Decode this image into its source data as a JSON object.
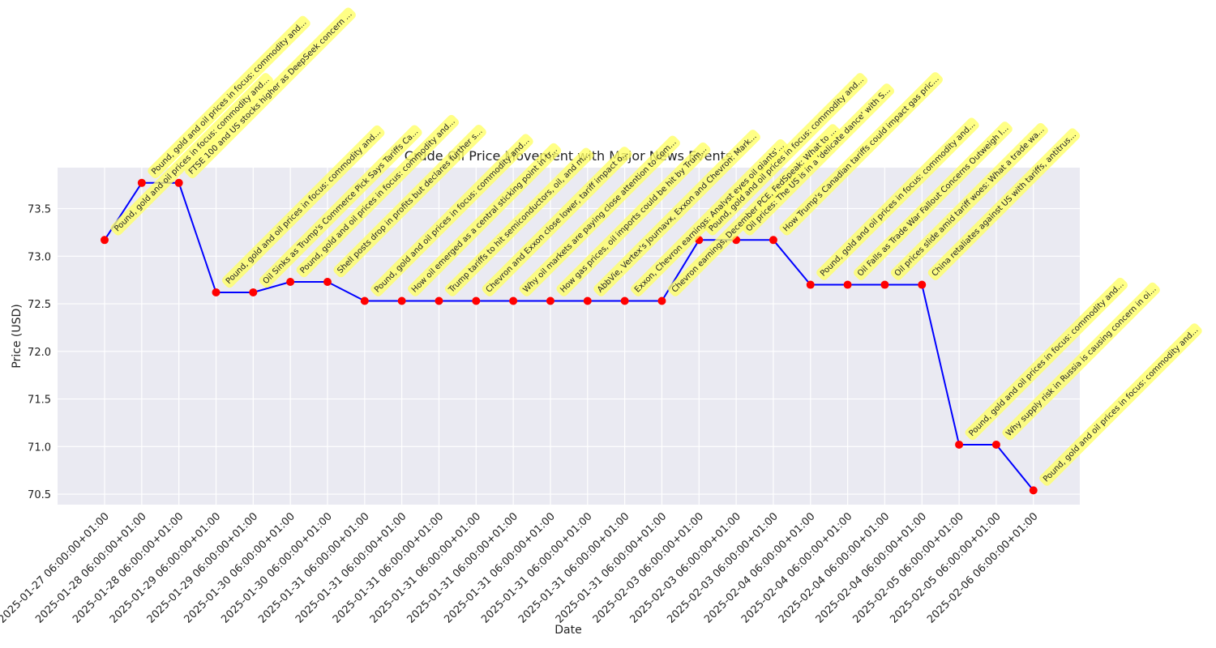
{
  "chart_data": {
    "type": "line",
    "title": "Crude Oil Price Movement with Major News Events",
    "x_label": "Date",
    "y_label": "Price (USD)",
    "categories": [
      "2025-01-27 06:00:00+01:00",
      "2025-01-28 06:00:00+01:00",
      "2025-01-28 06:00:00+01:00",
      "2025-01-29 06:00:00+01:00",
      "2025-01-29 06:00:00+01:00",
      "2025-01-30 06:00:00+01:00",
      "2025-01-30 06:00:00+01:00",
      "2025-01-31 06:00:00+01:00",
      "2025-01-31 06:00:00+01:00",
      "2025-01-31 06:00:00+01:00",
      "2025-01-31 06:00:00+01:00",
      "2025-01-31 06:00:00+01:00",
      "2025-01-31 06:00:00+01:00",
      "2025-01-31 06:00:00+01:00",
      "2025-01-31 06:00:00+01:00",
      "2025-01-31 06:00:00+01:00",
      "2025-02-03 06:00:00+01:00",
      "2025-02-03 06:00:00+01:00",
      "2025-02-03 06:00:00+01:00",
      "2025-02-04 06:00:00+01:00",
      "2025-02-04 06:00:00+01:00",
      "2025-02-04 06:00:00+01:00",
      "2025-02-04 06:00:00+01:00",
      "2025-02-05 06:00:00+01:00",
      "2025-02-05 06:00:00+01:00",
      "2025-02-06 06:00:00+01:00"
    ],
    "series": [
      {
        "name": "Price",
        "color": "#0000ff",
        "marker_color": "#ff0000",
        "values": [
          73.17,
          73.77,
          73.77,
          72.62,
          72.62,
          72.73,
          72.73,
          72.53,
          72.53,
          72.53,
          72.53,
          72.53,
          72.53,
          72.53,
          72.53,
          72.53,
          73.17,
          73.17,
          73.17,
          72.7,
          72.7,
          72.7,
          72.7,
          71.02,
          71.02,
          70.54
        ]
      }
    ],
    "annotations": [
      "Pound, gold and oil prices in focus: commodity and...",
      "Pound, gold and oil prices in focus: commodity and...",
      "FTSE 100 and US stocks higher as DeepSeek concern ...",
      "Pound, gold and oil prices in focus: commodity and...",
      "Oil Sinks as Trump's Commerce Pick Says Tariffs Ca...",
      "Pound, gold and oil prices in focus: commodity and...",
      "Shell posts drop in profits but declares further s...",
      "Pound, gold and oil prices in focus: commodity and...",
      "How oil emerged as a central sticking point in tr...",
      "Trump tariffs to hit semiconductors, oil, and m...",
      "Chevron and Exxon close lower, tariff impact o...",
      "Why oil markets are paying close attention to com...",
      "How gas prices, oil imports could be hit by Trum...",
      "AbbVie, Vertex's Journavx, Exxon and Chevron: Mark...",
      "Exxon, Chevron earnings: Analyst eyes oil giants'...",
      "Chevron earnings, December PCE, FedSpeak: What to ...",
      "Pound, gold and oil prices in focus: commodity and...",
      "Oil prices: The US is in a 'delicate dance' with S...",
      "How Trump's Canadian tariffs could impact gas pric...",
      "Pound, gold and oil prices in focus: commodity and...",
      "Oil Falls as Trade War Fallout Concerns Outweigh I...",
      "Oil prices slide amid tariff woes: What a trade wa...",
      "China retaliates against US with tariffs, antitrus...",
      "Pound, gold and oil prices in focus: commodity and...",
      "Why supply risk in Russia is causing concern in oi...",
      "Pound, gold and oil prices in focus: commodity and..."
    ],
    "annotation_color": "#ffff66",
    "ylim": [
      70.39,
      73.93
    ],
    "yticks": [
      {
        "value": 70.5,
        "label": "70.5"
      },
      {
        "value": 71,
        "label": "71.0"
      },
      {
        "value": 71.5,
        "label": "71.5"
      },
      {
        "value": 72,
        "label": "72.0"
      },
      {
        "value": 72.5,
        "label": "72.5"
      },
      {
        "value": 73,
        "label": "73.0"
      },
      {
        "value": 73.5,
        "label": "73.5"
      }
    ],
    "grid": true
  }
}
